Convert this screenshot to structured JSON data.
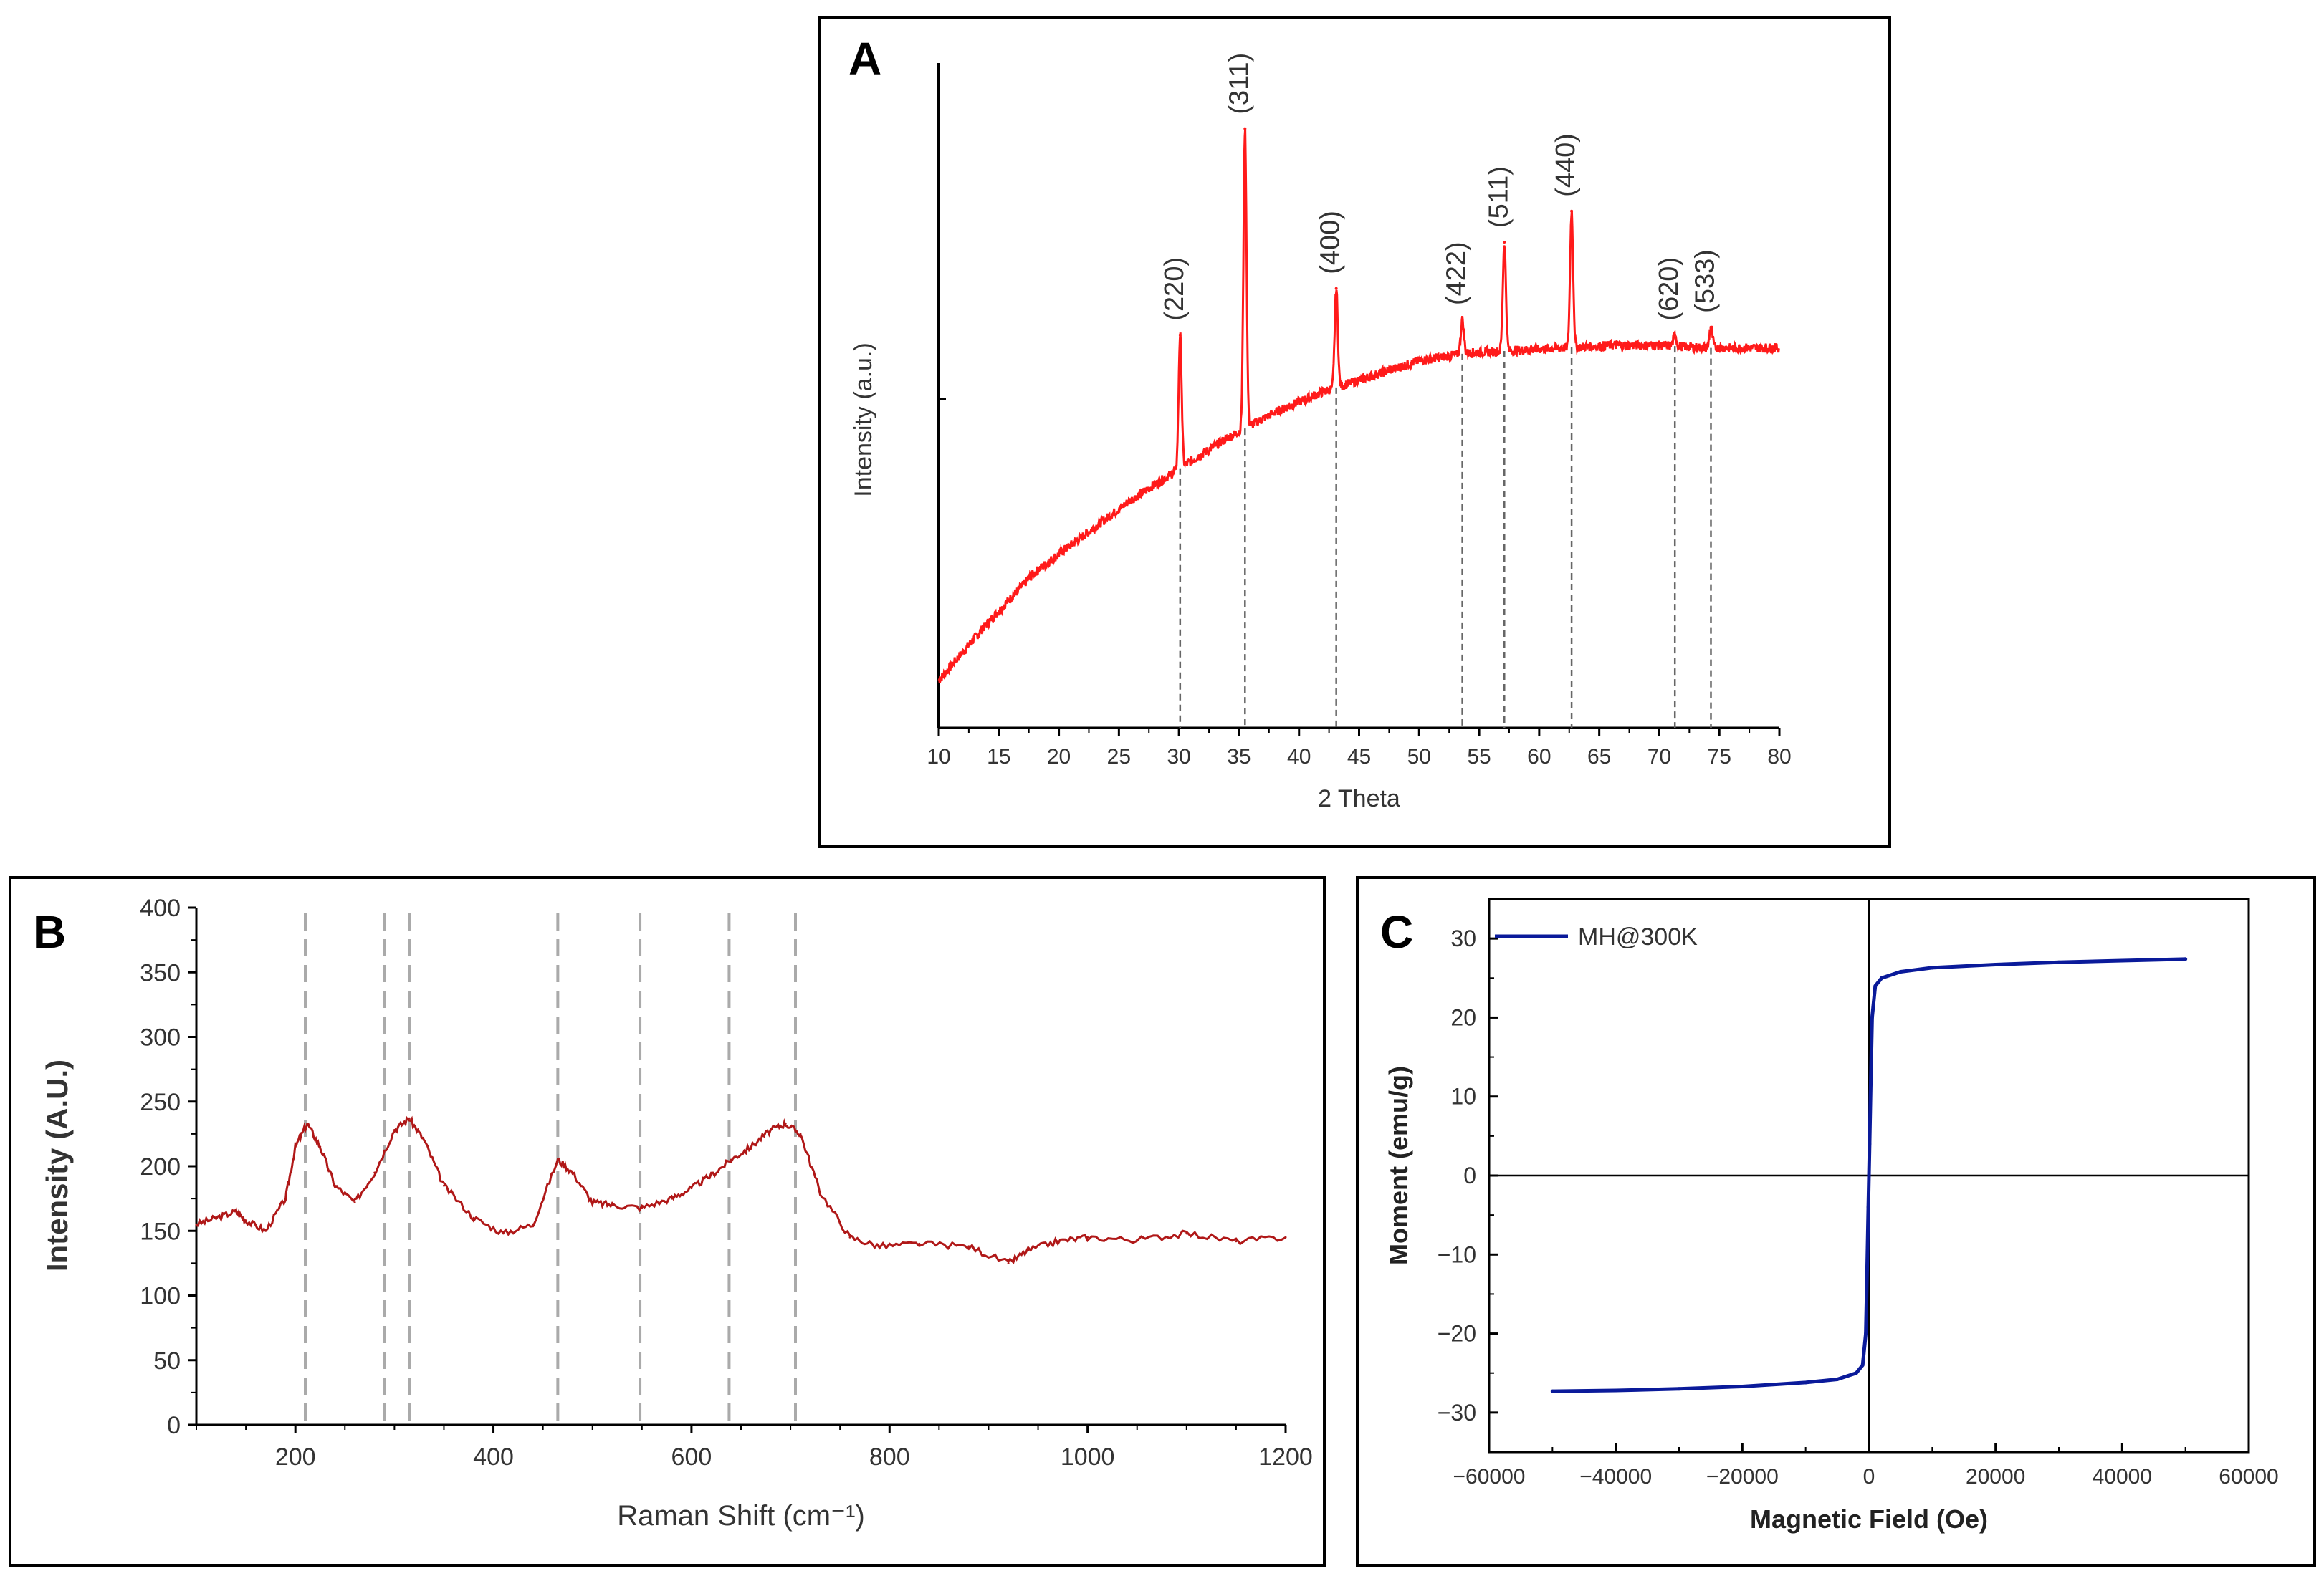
{
  "panels": {
    "a": {
      "label": "A"
    },
    "b": {
      "label": "B"
    },
    "c": {
      "label": "C"
    }
  },
  "chart_data": [
    {
      "id": "A",
      "type": "line",
      "xlabel": "2 Theta",
      "ylabel": "Intensity (a.u.)",
      "xlim": [
        10,
        80
      ],
      "x_ticks": [
        10,
        15,
        20,
        25,
        30,
        35,
        40,
        45,
        50,
        55,
        60,
        65,
        70,
        75,
        80
      ],
      "y_ticks_labeled": false,
      "grid": false,
      "series": [
        {
          "color": "#ff1a1a",
          "baseline": [
            [
              10,
              0.05
            ],
            [
              14,
              0.16
            ],
            [
              18,
              0.26
            ],
            [
              22,
              0.33
            ],
            [
              26,
              0.4
            ],
            [
              30,
              0.46
            ],
            [
              34,
              0.52
            ],
            [
              38,
              0.57
            ],
            [
              42,
              0.61
            ],
            [
              46,
              0.64
            ],
            [
              50,
              0.67
            ],
            [
              54,
              0.685
            ],
            [
              58,
              0.69
            ],
            [
              62,
              0.695
            ],
            [
              66,
              0.7
            ],
            [
              70,
              0.7
            ],
            [
              74,
              0.695
            ],
            [
              80,
              0.695
            ]
          ]
        }
      ],
      "peaks": [
        {
          "two_theta": 30.1,
          "label": "(220)",
          "top": 0.72
        },
        {
          "two_theta": 35.5,
          "label": "(311)",
          "top": 1.12
        },
        {
          "two_theta": 43.1,
          "label": "(400)",
          "top": 0.81
        },
        {
          "two_theta": 53.6,
          "label": "(422)",
          "top": 0.75
        },
        {
          "two_theta": 57.1,
          "label": "(511)",
          "top": 0.9
        },
        {
          "two_theta": 62.7,
          "label": "(440)",
          "top": 0.96
        },
        {
          "two_theta": 71.3,
          "label": "(620)",
          "top": 0.72
        },
        {
          "two_theta": 74.3,
          "label": "(533)",
          "top": 0.735
        }
      ]
    },
    {
      "id": "B",
      "type": "line",
      "xlabel": "Raman Shift (cm⁻¹)",
      "ylabel": "Intensity (A.U.)",
      "xlim": [
        100,
        1200
      ],
      "ylim": [
        0,
        400
      ],
      "x_ticks": [
        200,
        400,
        600,
        800,
        1000,
        1200
      ],
      "y_ticks": [
        0,
        50,
        100,
        150,
        200,
        250,
        300,
        350,
        400
      ],
      "grid": false,
      "series": [
        {
          "color": "#b01818",
          "x": [
            100,
            120,
            140,
            150,
            170,
            190,
            200,
            212,
            225,
            240,
            260,
            280,
            300,
            315,
            330,
            350,
            380,
            410,
            440,
            465,
            480,
            500,
            520,
            550,
            580,
            600,
            620,
            640,
            660,
            680,
            695,
            710,
            730,
            760,
            790,
            830,
            880,
            920,
            940,
            970,
            1000,
            1050,
            1100,
            1150,
            1200
          ],
          "y": [
            155,
            160,
            165,
            158,
            150,
            175,
            215,
            233,
            215,
            185,
            172,
            195,
            228,
            237,
            220,
            185,
            160,
            148,
            155,
            205,
            195,
            172,
            170,
            168,
            175,
            183,
            193,
            205,
            215,
            228,
            233,
            225,
            180,
            145,
            138,
            140,
            138,
            125,
            135,
            142,
            145,
            143,
            148,
            142,
            145
          ]
        }
      ],
      "reference_lines_x": [
        210,
        290,
        315,
        465,
        548,
        638,
        705
      ]
    },
    {
      "id": "C",
      "type": "line",
      "xlabel": "Magnetic Field (Oe)",
      "ylabel": "Moment (emu/g)",
      "xlim": [
        -60000,
        60000
      ],
      "ylim": [
        -35,
        35
      ],
      "x_ticks": [
        -60000,
        -40000,
        -20000,
        0,
        20000,
        40000,
        60000
      ],
      "y_ticks": [
        -30,
        -20,
        -10,
        0,
        10,
        20,
        30
      ],
      "grid": false,
      "legend": {
        "placement": "top-left"
      },
      "series": [
        {
          "name": "MH@300K",
          "color": "#0a1a9a",
          "x": [
            -50000,
            -40000,
            -30000,
            -20000,
            -10000,
            -5000,
            -2000,
            -1000,
            -500,
            -300,
            -100,
            0,
            100,
            300,
            500,
            1000,
            2000,
            5000,
            10000,
            20000,
            30000,
            40000,
            50000
          ],
          "y": [
            -27.3,
            -27.2,
            -27.0,
            -26.7,
            -26.2,
            -25.8,
            -25.0,
            -24.0,
            -20.0,
            -12.0,
            -4.0,
            0,
            4.0,
            12.0,
            20.0,
            24.0,
            25.0,
            25.8,
            26.3,
            26.7,
            27.0,
            27.2,
            27.4
          ]
        }
      ]
    }
  ]
}
